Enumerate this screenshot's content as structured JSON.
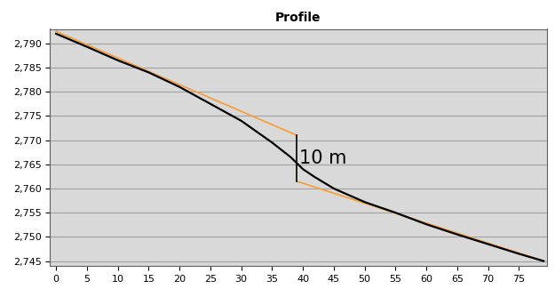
{
  "chart_data": {
    "type": "line",
    "title": "Profile",
    "xlim": [
      -1,
      79.5
    ],
    "xticks": [
      0,
      5,
      10,
      15,
      20,
      25,
      30,
      35,
      40,
      45,
      50,
      55,
      60,
      65,
      70,
      75
    ],
    "ylim": [
      2744,
      2793
    ],
    "yticks": [
      {
        "value": 2745,
        "label": "2,745"
      },
      {
        "value": 2750,
        "label": "2,750"
      },
      {
        "value": 2755,
        "label": "2,755"
      },
      {
        "value": 2760,
        "label": "2,760"
      },
      {
        "value": 2765,
        "label": "2,765"
      },
      {
        "value": 2770,
        "label": "2,770"
      },
      {
        "value": 2775,
        "label": "2,775"
      },
      {
        "value": 2780,
        "label": "2,780"
      },
      {
        "value": 2785,
        "label": "2,785"
      },
      {
        "value": 2790,
        "label": "2,790"
      }
    ],
    "grid": true,
    "series": [
      {
        "color": "#000000",
        "x": [
          0,
          5,
          10,
          15,
          20,
          25,
          30,
          35,
          38,
          40,
          42,
          45,
          50,
          55,
          60,
          65,
          70,
          75,
          79
        ],
        "values": [
          2792,
          2789.3,
          2786.5,
          2784,
          2781,
          2777.5,
          2774,
          2769.5,
          2766.5,
          2764,
          2762.3,
          2760,
          2757.2,
          2755,
          2752.6,
          2750.5,
          2748.5,
          2746.5,
          2745
        ]
      },
      {
        "color": "#f5a040",
        "x": [
          0,
          39
        ],
        "values": [
          2792.5,
          2771
        ]
      },
      {
        "color": "#f5a040",
        "x": [
          39,
          79
        ],
        "values": [
          2761.5,
          2745
        ]
      }
    ],
    "annotations": [
      {
        "text": "10 m",
        "x": 39,
        "y_from": 2761.5,
        "y_to": 2771
      }
    ]
  }
}
